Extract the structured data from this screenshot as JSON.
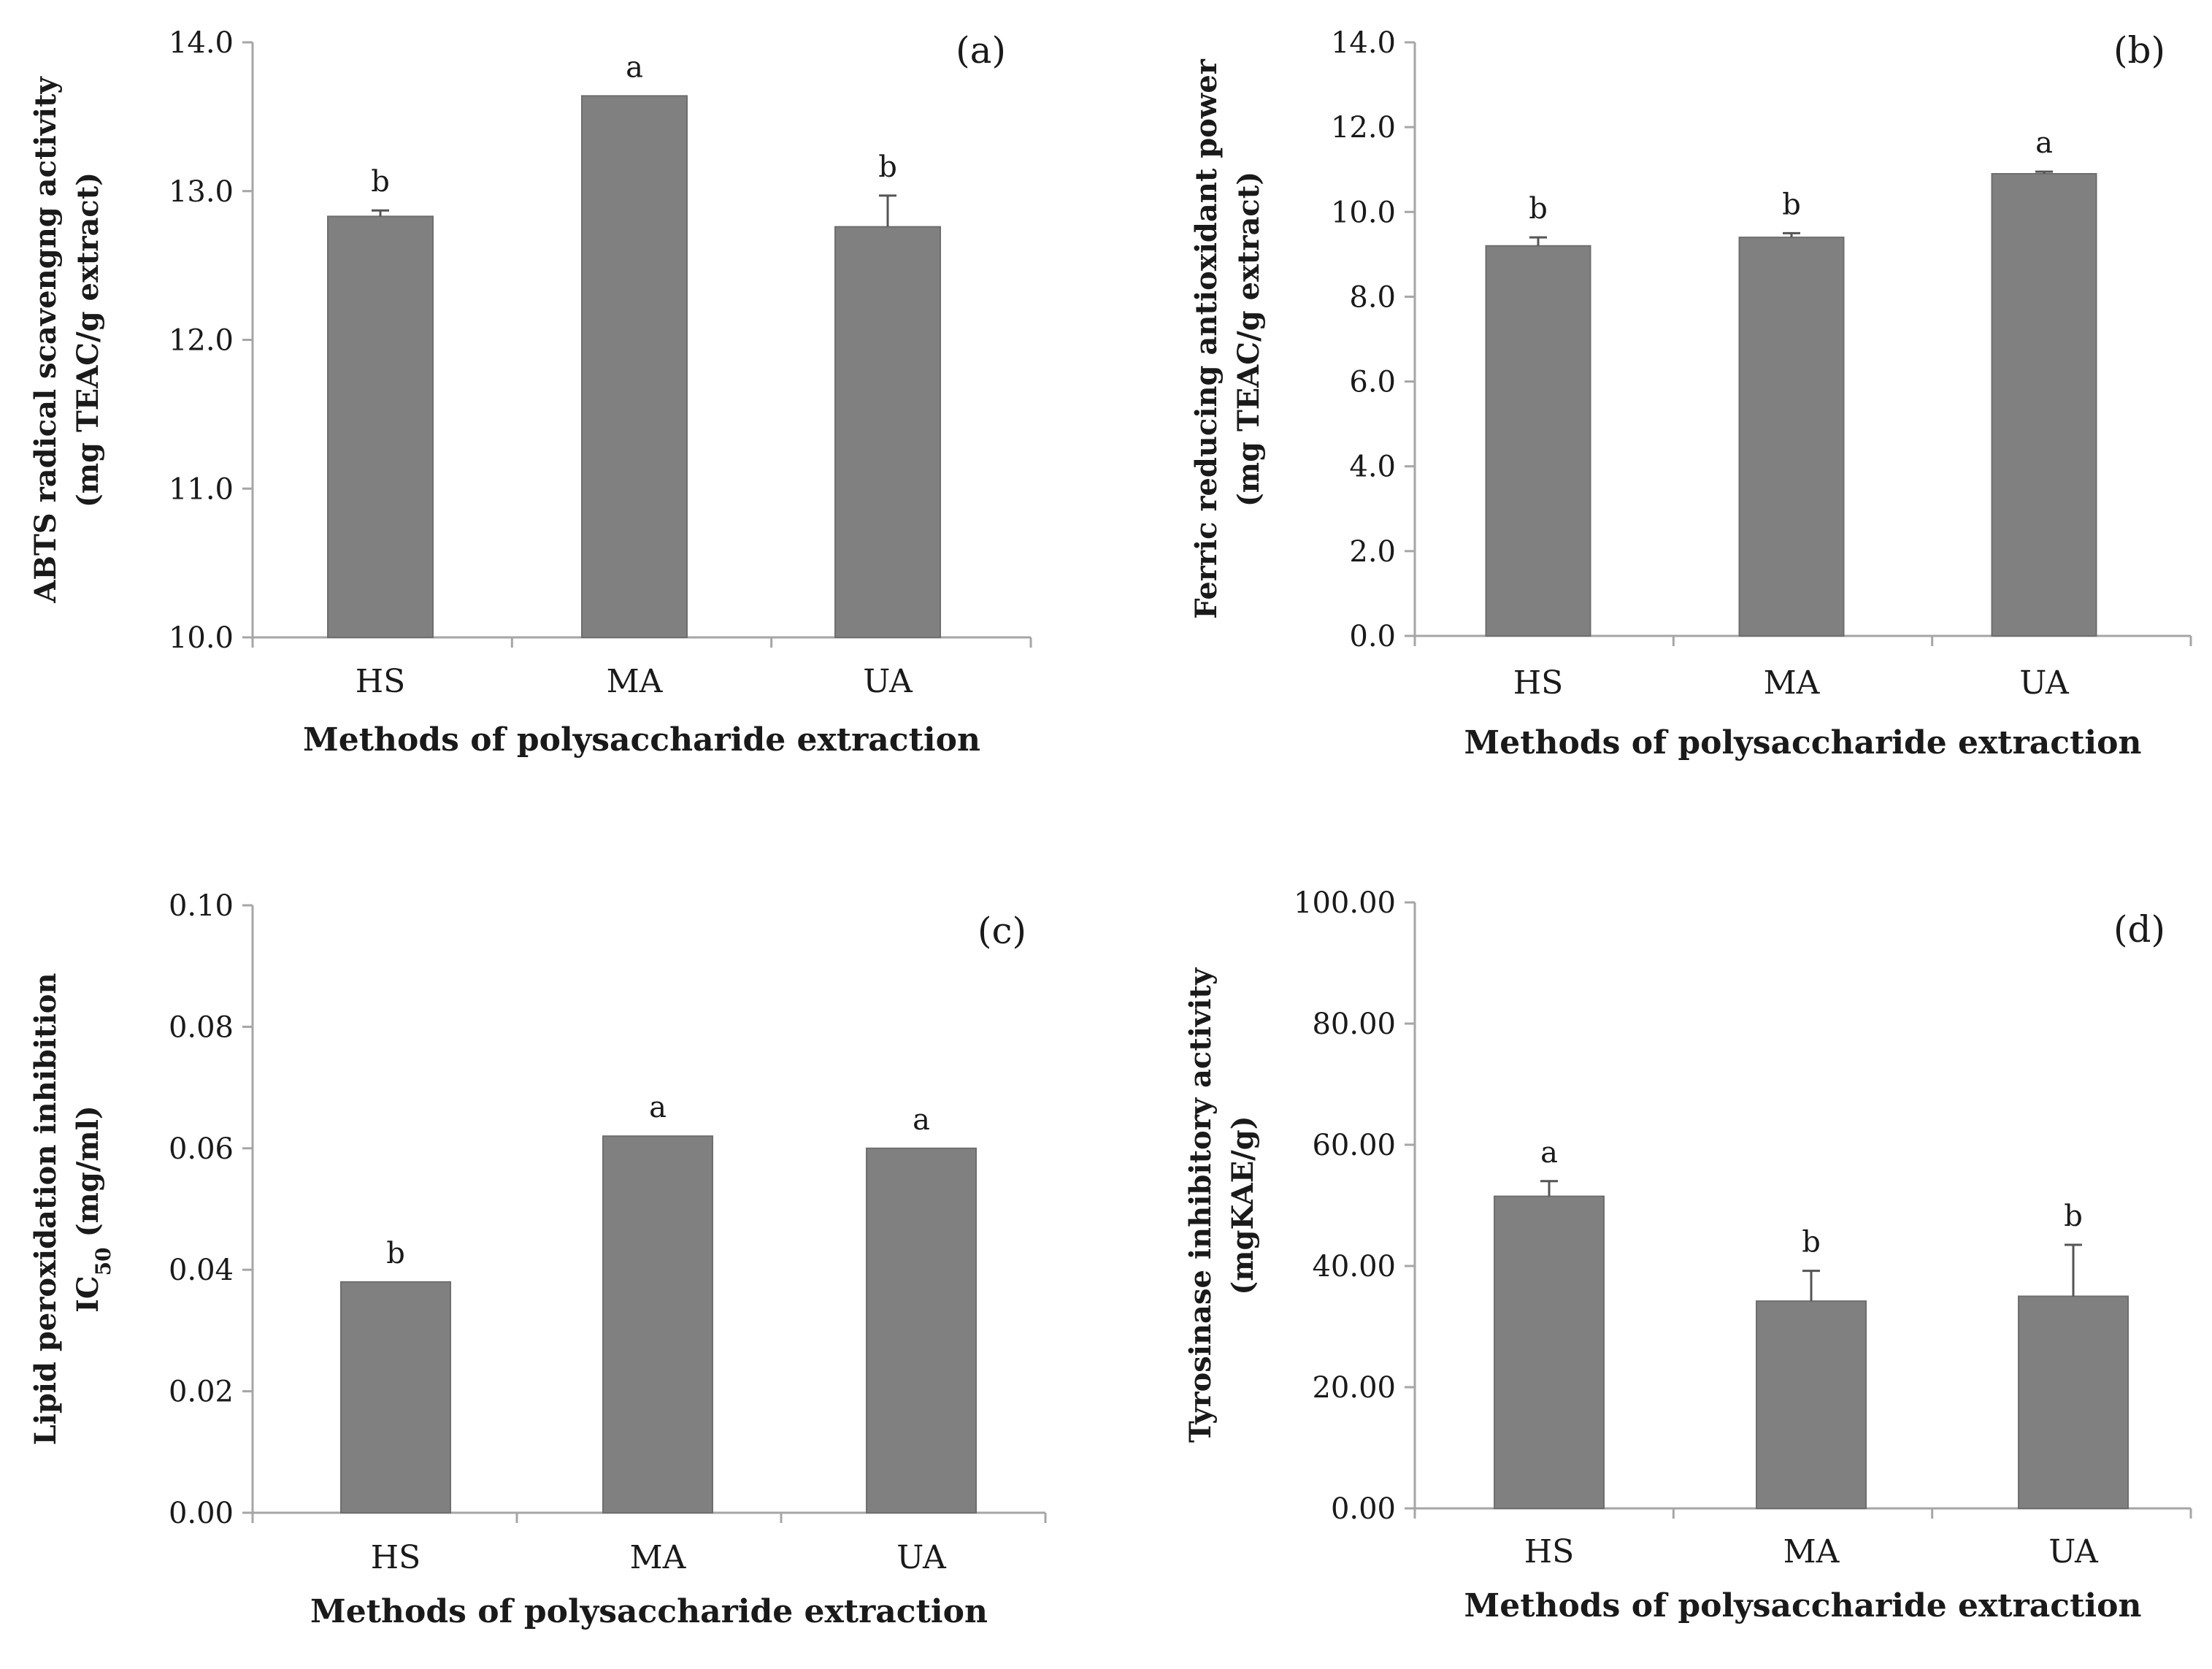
{
  "chart_data": [
    {
      "type": "bar",
      "panel": "(a)",
      "categories": [
        "HS",
        "MA",
        "UA"
      ],
      "values": [
        12.83,
        13.64,
        12.76
      ],
      "errors": [
        0.04,
        0.0,
        0.21
      ],
      "significance": [
        "b",
        "a",
        "b"
      ],
      "ylim": [
        10.0,
        14.0
      ],
      "yticks": [
        "10.0",
        "11.0",
        "12.0",
        "13.0",
        "14.0"
      ],
      "ylabel_lines": [
        "ABTS radical scavengng activity",
        "(mg TEAC/g extract)"
      ],
      "xlabel": "Methods of polysaccharide extraction"
    },
    {
      "type": "bar",
      "panel": "(b)",
      "categories": [
        "HS",
        "MA",
        "UA"
      ],
      "values": [
        9.2,
        9.4,
        10.9
      ],
      "errors": [
        0.2,
        0.1,
        0.05
      ],
      "significance": [
        "b",
        "b",
        "a"
      ],
      "ylim": [
        0.0,
        14.0
      ],
      "yticks": [
        "0.0",
        "2.0",
        "4.0",
        "6.0",
        "8.0",
        "10.0",
        "12.0",
        "14.0"
      ],
      "ylabel_lines": [
        "Ferric reducing antioxidant power",
        "(mg TEAC/g extract)"
      ],
      "xlabel": "Methods of polysaccharide extraction"
    },
    {
      "type": "bar",
      "panel": "(c)",
      "categories": [
        "HS",
        "MA",
        "UA"
      ],
      "values": [
        0.038,
        0.062,
        0.06
      ],
      "errors": [
        0.0,
        0.0,
        0.0
      ],
      "significance": [
        "b",
        "a",
        "a"
      ],
      "ylim": [
        0.0,
        0.1
      ],
      "yticks": [
        "0.00",
        "0.02",
        "0.04",
        "0.06",
        "0.08",
        "0.10"
      ],
      "ylabel_lines": [
        "Lipid peroxidation inhibition",
        "IC50 (mg/ml)"
      ],
      "xlabel": "Methods of polysaccharide extraction"
    },
    {
      "type": "bar",
      "panel": "(d)",
      "categories": [
        "HS",
        "MA",
        "UA"
      ],
      "values": [
        51.5,
        34.2,
        35.0
      ],
      "errors": [
        2.5,
        5.0,
        8.5
      ],
      "significance": [
        "a",
        "b",
        "b"
      ],
      "ylim": [
        0.0,
        100.0
      ],
      "yticks": [
        "0.00",
        "20.00",
        "40.00",
        "60.00",
        "80.00",
        "100.00"
      ],
      "ylabel_lines": [
        "Tyrosinase inhibitory activity",
        "(mgKAE/g)"
      ],
      "xlabel": "Methods of polysaccharide extraction"
    }
  ],
  "colors": {
    "bar_fill": "#808080",
    "axis": "#a6a6a6",
    "error_bar": "#555555",
    "text": "#1a1a1a"
  }
}
